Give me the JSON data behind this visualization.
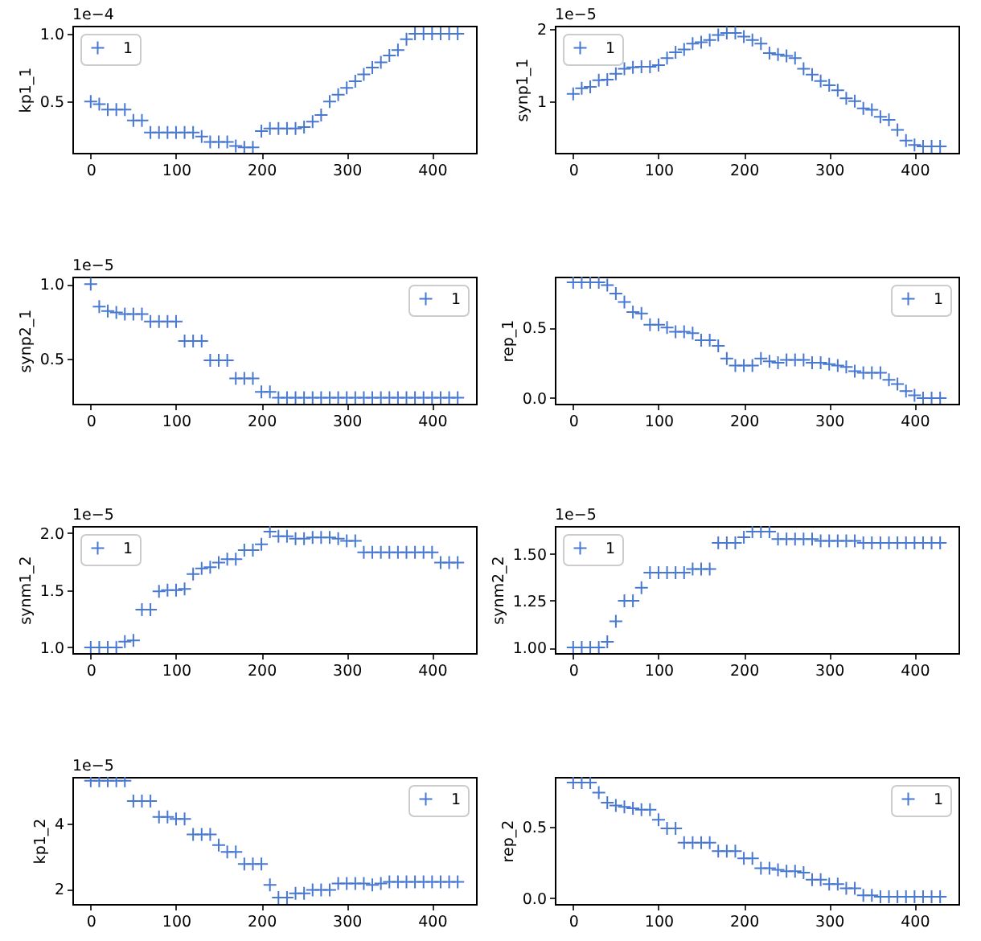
{
  "chart_data": [
    {
      "type": "scatter",
      "ylabel": "kp1_1",
      "annotations": [
        "1e−4"
      ],
      "legend": "top left",
      "marker": "cross",
      "x": [
        0,
        10,
        20,
        30,
        40,
        50,
        60,
        70,
        80,
        90,
        100,
        110,
        120,
        130,
        140,
        150,
        160,
        170,
        180,
        190,
        200,
        210,
        220,
        230,
        240,
        250,
        260,
        270,
        280,
        290,
        300,
        310,
        320,
        330,
        340,
        350,
        360,
        370,
        380,
        390,
        400,
        410,
        420,
        430
      ],
      "series": [
        {
          "name": "1",
          "color": "#4878cf",
          "values": [
            0.5,
            0.48,
            0.44,
            0.44,
            0.44,
            0.36,
            0.36,
            0.27,
            0.27,
            0.27,
            0.27,
            0.27,
            0.27,
            0.24,
            0.2,
            0.2,
            0.2,
            0.17,
            0.16,
            0.16,
            0.28,
            0.3,
            0.3,
            0.3,
            0.3,
            0.31,
            0.35,
            0.4,
            0.5,
            0.55,
            0.6,
            0.65,
            0.7,
            0.75,
            0.79,
            0.84,
            0.88,
            0.96,
            1.0,
            1.0,
            1.0,
            1.0,
            1.0,
            1.0
          ]
        }
      ],
      "xlim": [
        -21.5,
        451.5
      ],
      "xticks": [
        0,
        100,
        200,
        300,
        400
      ],
      "ylim": [
        0.12,
        1.06
      ],
      "yticks": [
        0.5,
        {
          "value": 1,
          "label": "1.0"
        }
      ]
    },
    {
      "type": "scatter",
      "ylabel": "synp1_1",
      "annotations": [
        "1e−5"
      ],
      "legend": "top left",
      "marker": "cross",
      "x": [
        0,
        10,
        20,
        30,
        40,
        50,
        60,
        70,
        80,
        90,
        100,
        110,
        120,
        130,
        140,
        150,
        160,
        170,
        180,
        190,
        200,
        210,
        220,
        230,
        240,
        250,
        260,
        270,
        280,
        290,
        300,
        310,
        320,
        330,
        340,
        350,
        360,
        370,
        380,
        390,
        400,
        410,
        420,
        430
      ],
      "series": [
        {
          "name": "1",
          "color": "#4878cf",
          "values": [
            1.1,
            1.18,
            1.2,
            1.29,
            1.3,
            1.38,
            1.45,
            1.47,
            1.48,
            1.48,
            1.5,
            1.6,
            1.68,
            1.72,
            1.8,
            1.82,
            1.85,
            1.92,
            1.95,
            1.95,
            1.9,
            1.85,
            1.8,
            1.67,
            1.65,
            1.63,
            1.6,
            1.45,
            1.37,
            1.28,
            1.22,
            1.15,
            1.04,
            1.0,
            0.9,
            0.88,
            0.78,
            0.74,
            0.6,
            0.45,
            0.39,
            0.37,
            0.37,
            0.37
          ]
        }
      ],
      "xlim": [
        -21.5,
        451.5
      ],
      "xticks": [
        0,
        100,
        200,
        300,
        400
      ],
      "ylim": [
        0.28,
        2.05
      ],
      "yticks": [
        1,
        2
      ]
    },
    {
      "type": "scatter",
      "ylabel": "synp2_1",
      "annotations": [
        "1e−5"
      ],
      "legend": "top right",
      "marker": "cross",
      "x": [
        0,
        10,
        20,
        30,
        40,
        50,
        60,
        70,
        80,
        90,
        100,
        110,
        120,
        130,
        140,
        150,
        160,
        170,
        180,
        190,
        200,
        210,
        220,
        230,
        240,
        250,
        260,
        270,
        280,
        290,
        300,
        310,
        320,
        330,
        340,
        350,
        360,
        370,
        380,
        390,
        400,
        410,
        420,
        430
      ],
      "series": [
        {
          "name": "1",
          "color": "#4878cf",
          "values": [
            1.0,
            0.85,
            0.82,
            0.81,
            0.8,
            0.8,
            0.8,
            0.75,
            0.75,
            0.75,
            0.75,
            0.62,
            0.62,
            0.62,
            0.49,
            0.49,
            0.49,
            0.37,
            0.37,
            0.37,
            0.28,
            0.28,
            0.24,
            0.24,
            0.24,
            0.24,
            0.24,
            0.24,
            0.24,
            0.24,
            0.24,
            0.24,
            0.24,
            0.24,
            0.24,
            0.24,
            0.24,
            0.24,
            0.24,
            0.24,
            0.24,
            0.24,
            0.24,
            0.24
          ]
        }
      ],
      "xlim": [
        -21.5,
        451.5
      ],
      "xticks": [
        0,
        100,
        200,
        300,
        400
      ],
      "ylim": [
        0.2,
        1.05
      ],
      "yticks": [
        0.5,
        {
          "value": 1,
          "label": "1.0"
        }
      ]
    },
    {
      "type": "scatter",
      "ylabel": "rep_1",
      "legend": "top right",
      "marker": "cross",
      "x": [
        0,
        10,
        20,
        30,
        40,
        50,
        60,
        70,
        80,
        90,
        100,
        110,
        120,
        130,
        140,
        150,
        160,
        170,
        180,
        190,
        200,
        210,
        220,
        230,
        240,
        250,
        260,
        270,
        280,
        290,
        300,
        310,
        320,
        330,
        340,
        350,
        360,
        370,
        380,
        390,
        400,
        410,
        420,
        430
      ],
      "series": [
        {
          "name": "1",
          "color": "#4878cf",
          "values": [
            0.82,
            0.82,
            0.82,
            0.82,
            0.8,
            0.74,
            0.68,
            0.61,
            0.6,
            0.52,
            0.52,
            0.5,
            0.47,
            0.47,
            0.46,
            0.41,
            0.41,
            0.37,
            0.28,
            0.23,
            0.23,
            0.23,
            0.28,
            0.26,
            0.25,
            0.27,
            0.27,
            0.27,
            0.25,
            0.25,
            0.24,
            0.23,
            0.22,
            0.19,
            0.18,
            0.18,
            0.18,
            0.13,
            0.1,
            0.05,
            0.02,
            0.0,
            0.0,
            0.0
          ]
        }
      ],
      "xlim": [
        -21.5,
        451.5
      ],
      "xticks": [
        0,
        100,
        200,
        300,
        400
      ],
      "ylim": [
        -0.04,
        0.86
      ],
      "yticks": [
        {
          "value": 0,
          "label": "0.0"
        },
        0.5
      ]
    },
    {
      "type": "scatter",
      "ylabel": "synm1_2",
      "annotations": [
        "1e−5"
      ],
      "legend": "top left",
      "marker": "cross",
      "x": [
        0,
        10,
        20,
        30,
        40,
        50,
        60,
        70,
        80,
        90,
        100,
        110,
        120,
        130,
        140,
        150,
        160,
        170,
        180,
        190,
        200,
        210,
        220,
        230,
        240,
        250,
        260,
        270,
        280,
        290,
        300,
        310,
        320,
        330,
        340,
        350,
        360,
        370,
        380,
        390,
        400,
        410,
        420,
        430
      ],
      "series": [
        {
          "name": "1",
          "color": "#4878cf",
          "values": [
            1.0,
            1.0,
            1.0,
            1.0,
            1.05,
            1.06,
            1.33,
            1.33,
            1.49,
            1.5,
            1.5,
            1.51,
            1.64,
            1.69,
            1.7,
            1.74,
            1.77,
            1.77,
            1.85,
            1.85,
            1.9,
            2.01,
            1.97,
            1.97,
            1.95,
            1.95,
            1.96,
            1.96,
            1.96,
            1.95,
            1.93,
            1.93,
            1.83,
            1.83,
            1.83,
            1.83,
            1.83,
            1.83,
            1.83,
            1.83,
            1.83,
            1.74,
            1.74,
            1.74
          ]
        }
      ],
      "xlim": [
        -21.5,
        451.5
      ],
      "xticks": [
        0,
        100,
        200,
        300,
        400
      ],
      "ylim": [
        0.95,
        2.06
      ],
      "yticks": [
        {
          "value": 1,
          "label": "1.0"
        },
        1.5,
        {
          "value": 2,
          "label": "2.0"
        }
      ]
    },
    {
      "type": "scatter",
      "ylabel": "synm2_2",
      "annotations": [
        "1e−5"
      ],
      "legend": "top left",
      "marker": "cross",
      "x": [
        0,
        10,
        20,
        30,
        40,
        50,
        60,
        70,
        80,
        90,
        100,
        110,
        120,
        130,
        140,
        150,
        160,
        170,
        180,
        190,
        200,
        210,
        220,
        230,
        240,
        250,
        260,
        270,
        280,
        290,
        300,
        310,
        320,
        330,
        340,
        350,
        360,
        370,
        380,
        390,
        400,
        410,
        420,
        430
      ],
      "series": [
        {
          "name": "1",
          "color": "#4878cf",
          "values": [
            1.0,
            1.0,
            1.0,
            1.0,
            1.03,
            1.14,
            1.25,
            1.25,
            1.32,
            1.4,
            1.4,
            1.4,
            1.4,
            1.4,
            1.42,
            1.42,
            1.42,
            1.56,
            1.56,
            1.56,
            1.59,
            1.62,
            1.62,
            1.62,
            1.58,
            1.58,
            1.58,
            1.58,
            1.58,
            1.57,
            1.57,
            1.57,
            1.57,
            1.57,
            1.56,
            1.56,
            1.56,
            1.56,
            1.56,
            1.56,
            1.56,
            1.56,
            1.56,
            1.56
          ]
        }
      ],
      "xlim": [
        -21.5,
        451.5
      ],
      "xticks": [
        0,
        100,
        200,
        300,
        400
      ],
      "ylim": [
        0.97,
        1.65
      ],
      "yticks": [
        {
          "value": 1,
          "label": "1.00"
        },
        1.25,
        {
          "value": 1.5,
          "label": "1.50"
        }
      ]
    },
    {
      "type": "scatter",
      "ylabel": "kp1_2",
      "annotations": [
        "1e−5"
      ],
      "legend": "top right",
      "marker": "cross",
      "x": [
        0,
        10,
        20,
        30,
        40,
        50,
        60,
        70,
        80,
        90,
        100,
        110,
        120,
        130,
        140,
        150,
        160,
        170,
        180,
        190,
        200,
        210,
        220,
        230,
        240,
        250,
        260,
        270,
        280,
        290,
        300,
        310,
        320,
        330,
        340,
        350,
        360,
        370,
        380,
        390,
        400,
        410,
        420,
        430
      ],
      "series": [
        {
          "name": "1",
          "color": "#4878cf",
          "values": [
            5.32,
            5.32,
            5.32,
            5.32,
            5.32,
            4.7,
            4.7,
            4.7,
            4.21,
            4.21,
            4.15,
            4.15,
            3.67,
            3.67,
            3.67,
            3.34,
            3.13,
            3.13,
            2.76,
            2.76,
            2.76,
            2.12,
            1.73,
            1.73,
            1.86,
            1.86,
            1.96,
            1.96,
            1.96,
            2.16,
            2.16,
            2.16,
            2.16,
            2.12,
            2.16,
            2.21,
            2.21,
            2.21,
            2.21,
            2.21,
            2.21,
            2.21,
            2.21,
            2.21
          ]
        }
      ],
      "xlim": [
        -21.5,
        451.5
      ],
      "xticks": [
        0,
        100,
        200,
        300,
        400
      ],
      "ylim": [
        1.53,
        5.44
      ],
      "yticks": [
        2,
        4
      ]
    },
    {
      "type": "scatter",
      "ylabel": "rep_2",
      "legend": "top right",
      "marker": "cross",
      "x": [
        0,
        10,
        20,
        30,
        40,
        50,
        60,
        70,
        80,
        90,
        100,
        110,
        120,
        130,
        140,
        150,
        160,
        170,
        180,
        190,
        200,
        210,
        220,
        230,
        240,
        250,
        260,
        270,
        280,
        290,
        300,
        310,
        320,
        330,
        340,
        350,
        360,
        370,
        380,
        390,
        400,
        410,
        420,
        430
      ],
      "series": [
        {
          "name": "1",
          "color": "#4878cf",
          "values": [
            0.81,
            0.81,
            0.81,
            0.74,
            0.67,
            0.65,
            0.64,
            0.63,
            0.62,
            0.62,
            0.55,
            0.49,
            0.49,
            0.39,
            0.39,
            0.39,
            0.39,
            0.33,
            0.33,
            0.33,
            0.28,
            0.28,
            0.21,
            0.21,
            0.2,
            0.19,
            0.19,
            0.18,
            0.13,
            0.13,
            0.1,
            0.1,
            0.07,
            0.07,
            0.02,
            0.02,
            0.01,
            0.01,
            0.01,
            0.01,
            0.01,
            0.01,
            0.01,
            0.01
          ]
        }
      ],
      "xlim": [
        -21.5,
        451.5
      ],
      "xticks": [
        0,
        100,
        200,
        300,
        400
      ],
      "ylim": [
        -0.04,
        0.85
      ],
      "yticks": [
        {
          "value": 0,
          "label": "0.0"
        },
        0.5
      ]
    }
  ]
}
